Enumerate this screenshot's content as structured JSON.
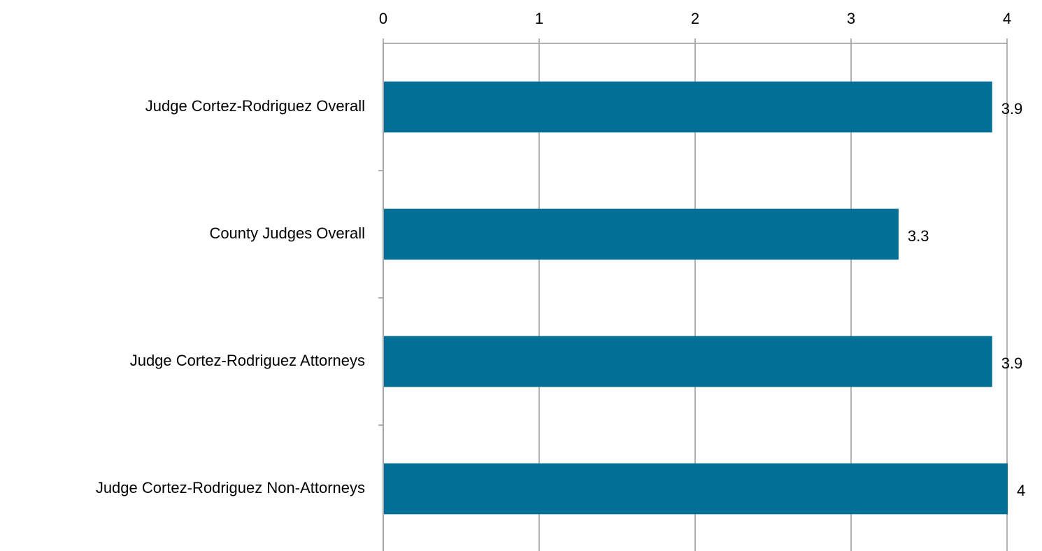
{
  "chart_data": {
    "type": "bar",
    "orientation": "horizontal",
    "categories": [
      "Judge Cortez-Rodriguez Overall",
      "County Judges Overall",
      "Judge Cortez-Rodriguez Attorneys",
      "Judge Cortez-Rodriguez Non-Attorneys"
    ],
    "values": [
      3.9,
      3.3,
      3.9,
      4
    ],
    "color": "#026f96",
    "xlim": [
      0,
      4
    ],
    "xticks": [
      0,
      1,
      2,
      3,
      4
    ],
    "grid": true
  }
}
